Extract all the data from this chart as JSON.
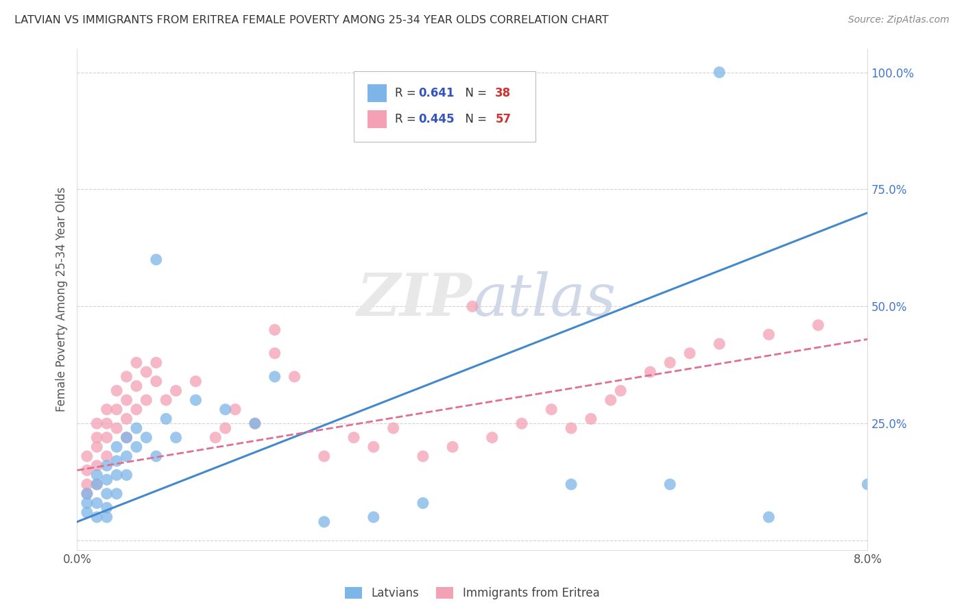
{
  "title": "LATVIAN VS IMMIGRANTS FROM ERITREA FEMALE POVERTY AMONG 25-34 YEAR OLDS CORRELATION CHART",
  "source": "Source: ZipAtlas.com",
  "ylabel": "Female Poverty Among 25-34 Year Olds",
  "xlim": [
    0.0,
    0.08
  ],
  "ylim": [
    -0.02,
    1.05
  ],
  "x_ticks": [
    0.0,
    0.01,
    0.02,
    0.03,
    0.04,
    0.05,
    0.06,
    0.07,
    0.08
  ],
  "x_tick_labels": [
    "0.0%",
    "",
    "",
    "",
    "",
    "",
    "",
    "",
    "8.0%"
  ],
  "y_tick_positions": [
    0.0,
    0.25,
    0.5,
    0.75,
    1.0
  ],
  "y_tick_labels": [
    "",
    "25.0%",
    "50.0%",
    "75.0%",
    "100.0%"
  ],
  "latvian_color": "#7EB5E8",
  "eritrea_color": "#F4A0B5",
  "trendline_blue": "#4488CC",
  "trendline_pink": "#E07090",
  "latvian_R": 0.641,
  "latvian_N": 38,
  "eritrea_R": 0.445,
  "eritrea_N": 57,
  "legend_label_latvians": "Latvians",
  "legend_label_eritrea": "Immigrants from Eritrea",
  "watermark": "ZIPatlas",
  "background_color": "#ffffff",
  "grid_color": "#cccccc",
  "axis_label_color": "#555555",
  "title_color": "#333333",
  "legend_R_color": "#3355bb",
  "legend_N_color": "#cc3333",
  "ytick_color": "#4477cc",
  "latvian_x": [
    0.001,
    0.001,
    0.001,
    0.002,
    0.002,
    0.002,
    0.002,
    0.003,
    0.003,
    0.003,
    0.003,
    0.003,
    0.004,
    0.004,
    0.004,
    0.004,
    0.005,
    0.005,
    0.005,
    0.006,
    0.006,
    0.007,
    0.008,
    0.008,
    0.009,
    0.01,
    0.012,
    0.015,
    0.018,
    0.02,
    0.025,
    0.03,
    0.035,
    0.05,
    0.06,
    0.065,
    0.07,
    0.08
  ],
  "latvian_y": [
    0.1,
    0.08,
    0.06,
    0.14,
    0.12,
    0.08,
    0.05,
    0.16,
    0.13,
    0.1,
    0.07,
    0.05,
    0.2,
    0.17,
    0.14,
    0.1,
    0.22,
    0.18,
    0.14,
    0.24,
    0.2,
    0.22,
    0.6,
    0.18,
    0.26,
    0.22,
    0.3,
    0.28,
    0.25,
    0.35,
    0.04,
    0.05,
    0.08,
    0.12,
    0.12,
    1.0,
    0.05,
    0.12
  ],
  "eritrea_x": [
    0.001,
    0.001,
    0.001,
    0.001,
    0.002,
    0.002,
    0.002,
    0.002,
    0.002,
    0.003,
    0.003,
    0.003,
    0.003,
    0.004,
    0.004,
    0.004,
    0.005,
    0.005,
    0.005,
    0.005,
    0.006,
    0.006,
    0.006,
    0.007,
    0.007,
    0.008,
    0.008,
    0.009,
    0.01,
    0.012,
    0.014,
    0.015,
    0.016,
    0.018,
    0.02,
    0.02,
    0.022,
    0.025,
    0.028,
    0.03,
    0.032,
    0.035,
    0.038,
    0.04,
    0.042,
    0.045,
    0.048,
    0.05,
    0.052,
    0.054,
    0.055,
    0.058,
    0.06,
    0.062,
    0.065,
    0.07,
    0.075
  ],
  "eritrea_y": [
    0.18,
    0.15,
    0.12,
    0.1,
    0.25,
    0.22,
    0.2,
    0.16,
    0.12,
    0.28,
    0.25,
    0.22,
    0.18,
    0.32,
    0.28,
    0.24,
    0.35,
    0.3,
    0.26,
    0.22,
    0.38,
    0.33,
    0.28,
    0.36,
    0.3,
    0.38,
    0.34,
    0.3,
    0.32,
    0.34,
    0.22,
    0.24,
    0.28,
    0.25,
    0.45,
    0.4,
    0.35,
    0.18,
    0.22,
    0.2,
    0.24,
    0.18,
    0.2,
    0.5,
    0.22,
    0.25,
    0.28,
    0.24,
    0.26,
    0.3,
    0.32,
    0.36,
    0.38,
    0.4,
    0.42,
    0.44,
    0.46
  ],
  "blue_line_x0": 0.0,
  "blue_line_y0": 0.04,
  "blue_line_x1": 0.08,
  "blue_line_y1": 0.7,
  "pink_line_x0": 0.0,
  "pink_line_y0": 0.15,
  "pink_line_x1": 0.08,
  "pink_line_y1": 0.43
}
